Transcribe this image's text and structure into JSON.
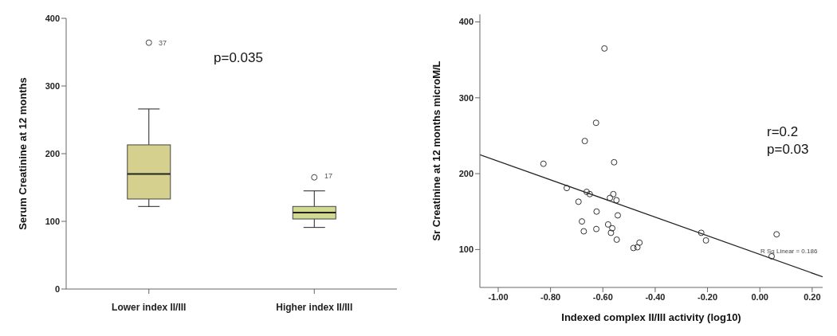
{
  "chart_data": [
    {
      "type": "box",
      "ylabel": "Serum Creatinine at 12 months",
      "categories": [
        "Lower index II/III",
        "Higher index II/III"
      ],
      "colors": [
        "#d6d08e",
        "#d2da92"
      ],
      "boxes": [
        {
          "low": 122,
          "q1": 133,
          "median": 170,
          "q3": 213,
          "high": 266,
          "outliers": [
            364
          ]
        },
        {
          "low": 91,
          "q1": 103.5,
          "median": 113,
          "q3": 122,
          "high": 145,
          "outliers": [
            165
          ]
        }
      ],
      "ylim": [
        0,
        400
      ],
      "yticks": [
        0,
        100,
        200,
        300,
        400
      ],
      "grid": false,
      "legend": false,
      "annotations": [
        "p=0.035",
        "37",
        "17"
      ]
    },
    {
      "type": "scatter",
      "xlabel": "Indexed complex II/III activity (log10)",
      "ylabel": "Sr Creatinine at 12 months microM/L",
      "grid": false,
      "legend": false,
      "xlim": [
        -1.07,
        0.24
      ],
      "xticks": [
        {
          "value": -1,
          "label": "-1.00"
        },
        {
          "value": -0.8,
          "label": "-0.80"
        },
        {
          "value": -0.6,
          "label": "-0.60"
        },
        {
          "value": -0.4,
          "label": "-0.40"
        },
        {
          "value": -0.2,
          "label": "-0.20"
        },
        {
          "value": 0,
          "label": "0.00"
        },
        {
          "value": 0.2,
          "label": "0.20"
        }
      ],
      "ylim": [
        50,
        410
      ],
      "yticks": [
        100,
        200,
        300,
        400
      ],
      "series": [
        {
          "color": "#333333",
          "marker": "circle",
          "x": [
            -0.594,
            -0.626,
            -0.669,
            -0.827,
            -0.557,
            -0.738,
            -0.662,
            -0.65,
            -0.56,
            -0.573,
            -0.548,
            -0.693,
            -0.624,
            -0.543,
            -0.68,
            -0.58,
            -0.564,
            -0.625,
            -0.673,
            -0.569,
            -0.547,
            -0.46,
            -0.483,
            -0.468,
            -0.224,
            -0.206,
            0.064,
            0.045
          ],
          "values": [
            365,
            267,
            243,
            213,
            215,
            181,
            176,
            173,
            173,
            168,
            165,
            163,
            150,
            145,
            137,
            133,
            128,
            127,
            124,
            122,
            113,
            109,
            102,
            103,
            122,
            112,
            120,
            91
          ]
        },
        {
          "type": "line",
          "color": "#222222",
          "x": [
            -1.07,
            0.24
          ],
          "values": [
            225,
            64
          ]
        }
      ],
      "annotations": [
        "r=0.2",
        "p=0.03",
        "R Sq Linear = 0.186"
      ]
    }
  ]
}
